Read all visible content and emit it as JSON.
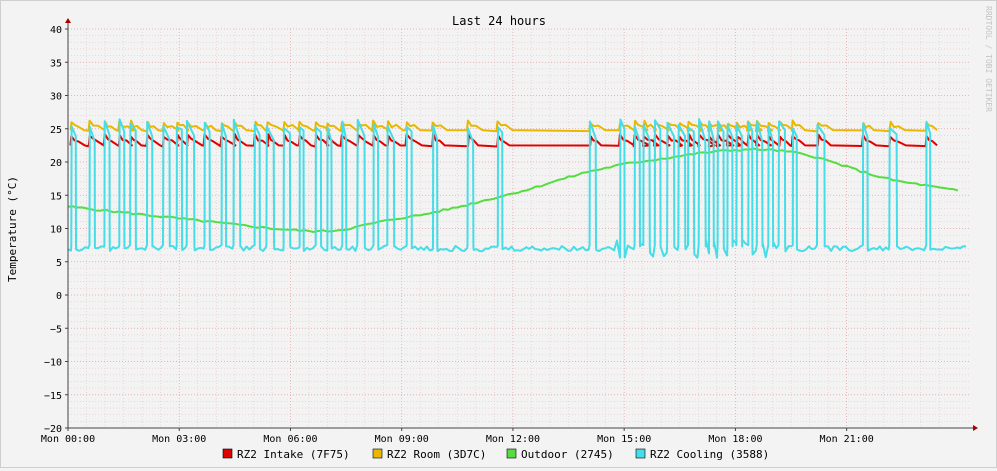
{
  "chart_data": {
    "type": "line",
    "title": "Last 24 hours",
    "ylabel": "Temperature (°C)",
    "xlabel": "",
    "watermark": "RRDTOOL / TOBI OETIKER",
    "ylim": [
      -20,
      40
    ],
    "yticks": [
      40,
      35,
      30,
      25,
      20,
      15,
      10,
      5,
      0,
      -5,
      -10,
      -15,
      -20
    ],
    "ytick_labels": [
      "40",
      "35",
      "30",
      "25",
      "20",
      "15",
      "10",
      "5",
      "0",
      "−5",
      "−10",
      "−15",
      "−20"
    ],
    "xlim_hours": [
      0,
      24.3
    ],
    "xticks_hours": [
      0,
      3,
      6,
      9,
      12,
      15,
      18,
      21
    ],
    "xtick_labels": [
      "Mon 00:00",
      "Mon 03:00",
      "Mon 06:00",
      "Mon 09:00",
      "Mon 12:00",
      "Mon 15:00",
      "Mon 18:00",
      "Mon 21:00"
    ],
    "grid": true,
    "legend_position": "bottom",
    "series": [
      {
        "name": "RZ2 Intake (7F75)",
        "color": "#e00000",
        "baseline": 22.4,
        "peak": 24.0,
        "x": [
          0.15,
          0.65,
          1.05,
          1.45,
          1.75,
          2.2,
          2.65,
          3.0,
          3.3,
          3.75,
          4.2,
          4.55,
          5.1,
          5.45,
          5.9,
          6.3,
          6.75,
          7.05,
          7.45,
          7.9,
          8.3,
          8.7,
          9.2,
          9.9,
          10.85,
          11.65,
          14.15,
          14.95,
          15.35,
          15.6,
          15.9,
          16.25,
          16.55,
          16.8,
          17.1,
          17.35,
          17.6,
          17.85,
          18.1,
          18.4,
          18.65,
          18.95,
          19.25,
          19.6,
          20.3,
          21.5,
          22.25,
          23.2
        ]
      },
      {
        "name": "RZ2 Room (3D7C)",
        "color": "#e8b800",
        "baseline": 24.7,
        "peak": 26.0,
        "x": [
          0.15,
          0.65,
          1.05,
          1.45,
          1.75,
          2.2,
          2.65,
          3.0,
          3.3,
          3.75,
          4.2,
          4.55,
          5.1,
          5.45,
          5.9,
          6.3,
          6.75,
          7.05,
          7.45,
          7.9,
          8.3,
          8.7,
          9.2,
          9.9,
          10.85,
          11.65,
          14.15,
          14.95,
          15.35,
          15.6,
          15.9,
          16.25,
          16.55,
          16.8,
          17.1,
          17.35,
          17.6,
          17.85,
          18.1,
          18.4,
          18.65,
          18.95,
          19.25,
          19.6,
          20.3,
          21.5,
          22.25,
          23.2
        ]
      },
      {
        "name": "Outdoor (2745)",
        "color": "#55dd40",
        "x": [
          0,
          0.5,
          1.0,
          1.5,
          2.0,
          2.5,
          3.0,
          3.5,
          4.0,
          4.5,
          5.0,
          5.5,
          6.0,
          6.5,
          7.0,
          7.5,
          8.0,
          8.5,
          9.0,
          9.5,
          10.0,
          10.5,
          11.0,
          11.5,
          12.0,
          12.5,
          13.0,
          13.5,
          14.0,
          14.5,
          15.0,
          15.5,
          16.0,
          16.5,
          17.0,
          17.5,
          18.0,
          18.5,
          19.0,
          19.5,
          20.0,
          20.5,
          21.0,
          21.5,
          22.0,
          22.5,
          23.0,
          23.5,
          24.0
        ],
        "values": [
          13.3,
          13.0,
          12.7,
          12.4,
          12.1,
          11.8,
          11.5,
          11.2,
          10.9,
          10.6,
          10.3,
          10.0,
          9.8,
          9.6,
          9.6,
          9.9,
          10.5,
          11.1,
          11.6,
          12.0,
          12.6,
          13.2,
          13.9,
          14.6,
          15.3,
          16.0,
          16.9,
          17.7,
          18.5,
          19.1,
          19.7,
          20.1,
          20.5,
          20.9,
          21.3,
          21.6,
          21.8,
          21.9,
          21.8,
          21.5,
          21.0,
          20.2,
          19.3,
          18.4,
          17.6,
          17.0,
          16.6,
          16.1,
          15.7
        ]
      },
      {
        "name": "RZ2 Cooling (3588)",
        "color": "#44dde8",
        "baseline": 7.0,
        "peak": 26.0,
        "x": [
          0.15,
          0.65,
          1.05,
          1.45,
          1.75,
          2.2,
          2.65,
          3.0,
          3.3,
          3.75,
          4.2,
          4.55,
          5.1,
          5.45,
          5.9,
          6.3,
          6.75,
          7.05,
          7.45,
          7.9,
          8.3,
          8.7,
          9.2,
          9.9,
          10.85,
          11.65,
          14.15,
          14.95,
          15.35,
          15.6,
          15.9,
          16.25,
          16.55,
          16.8,
          17.1,
          17.35,
          17.6,
          17.85,
          18.1,
          18.4,
          18.65,
          18.95,
          19.25,
          19.6,
          20.3,
          21.5,
          22.25,
          23.2
        ]
      }
    ]
  }
}
